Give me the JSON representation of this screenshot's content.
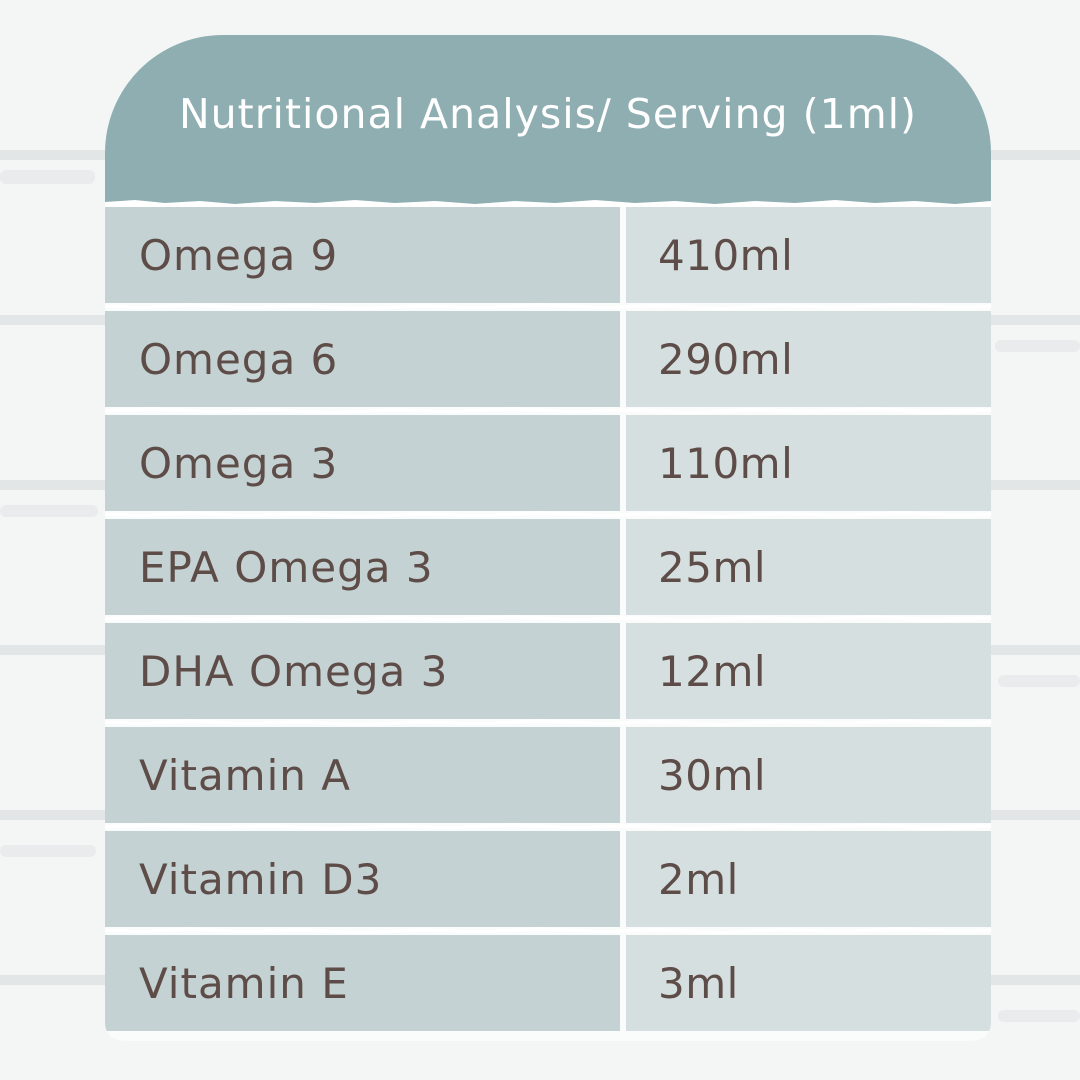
{
  "table": {
    "title": "Nutritional Analysis/ Serving (1ml)",
    "rows": [
      {
        "name": "Omega 9",
        "value": "410ml"
      },
      {
        "name": "Omega 6",
        "value": "290ml"
      },
      {
        "name": "Omega 3",
        "value": "110ml"
      },
      {
        "name": "EPA Omega 3",
        "value": "25ml"
      },
      {
        "name": "DHA Omega 3",
        "value": "12ml"
      },
      {
        "name": "Vitamin A",
        "value": "30ml"
      },
      {
        "name": "Vitamin D3",
        "value": "2ml"
      },
      {
        "name": "Vitamin E",
        "value": "3ml"
      }
    ]
  },
  "colors": {
    "header": "#8faeb1",
    "name_cell": "#c4d2d3",
    "value_cell": "#d5dfe0",
    "text": "#5d4c47",
    "title_text": "#ffffff",
    "background": "#f4f5f5"
  }
}
